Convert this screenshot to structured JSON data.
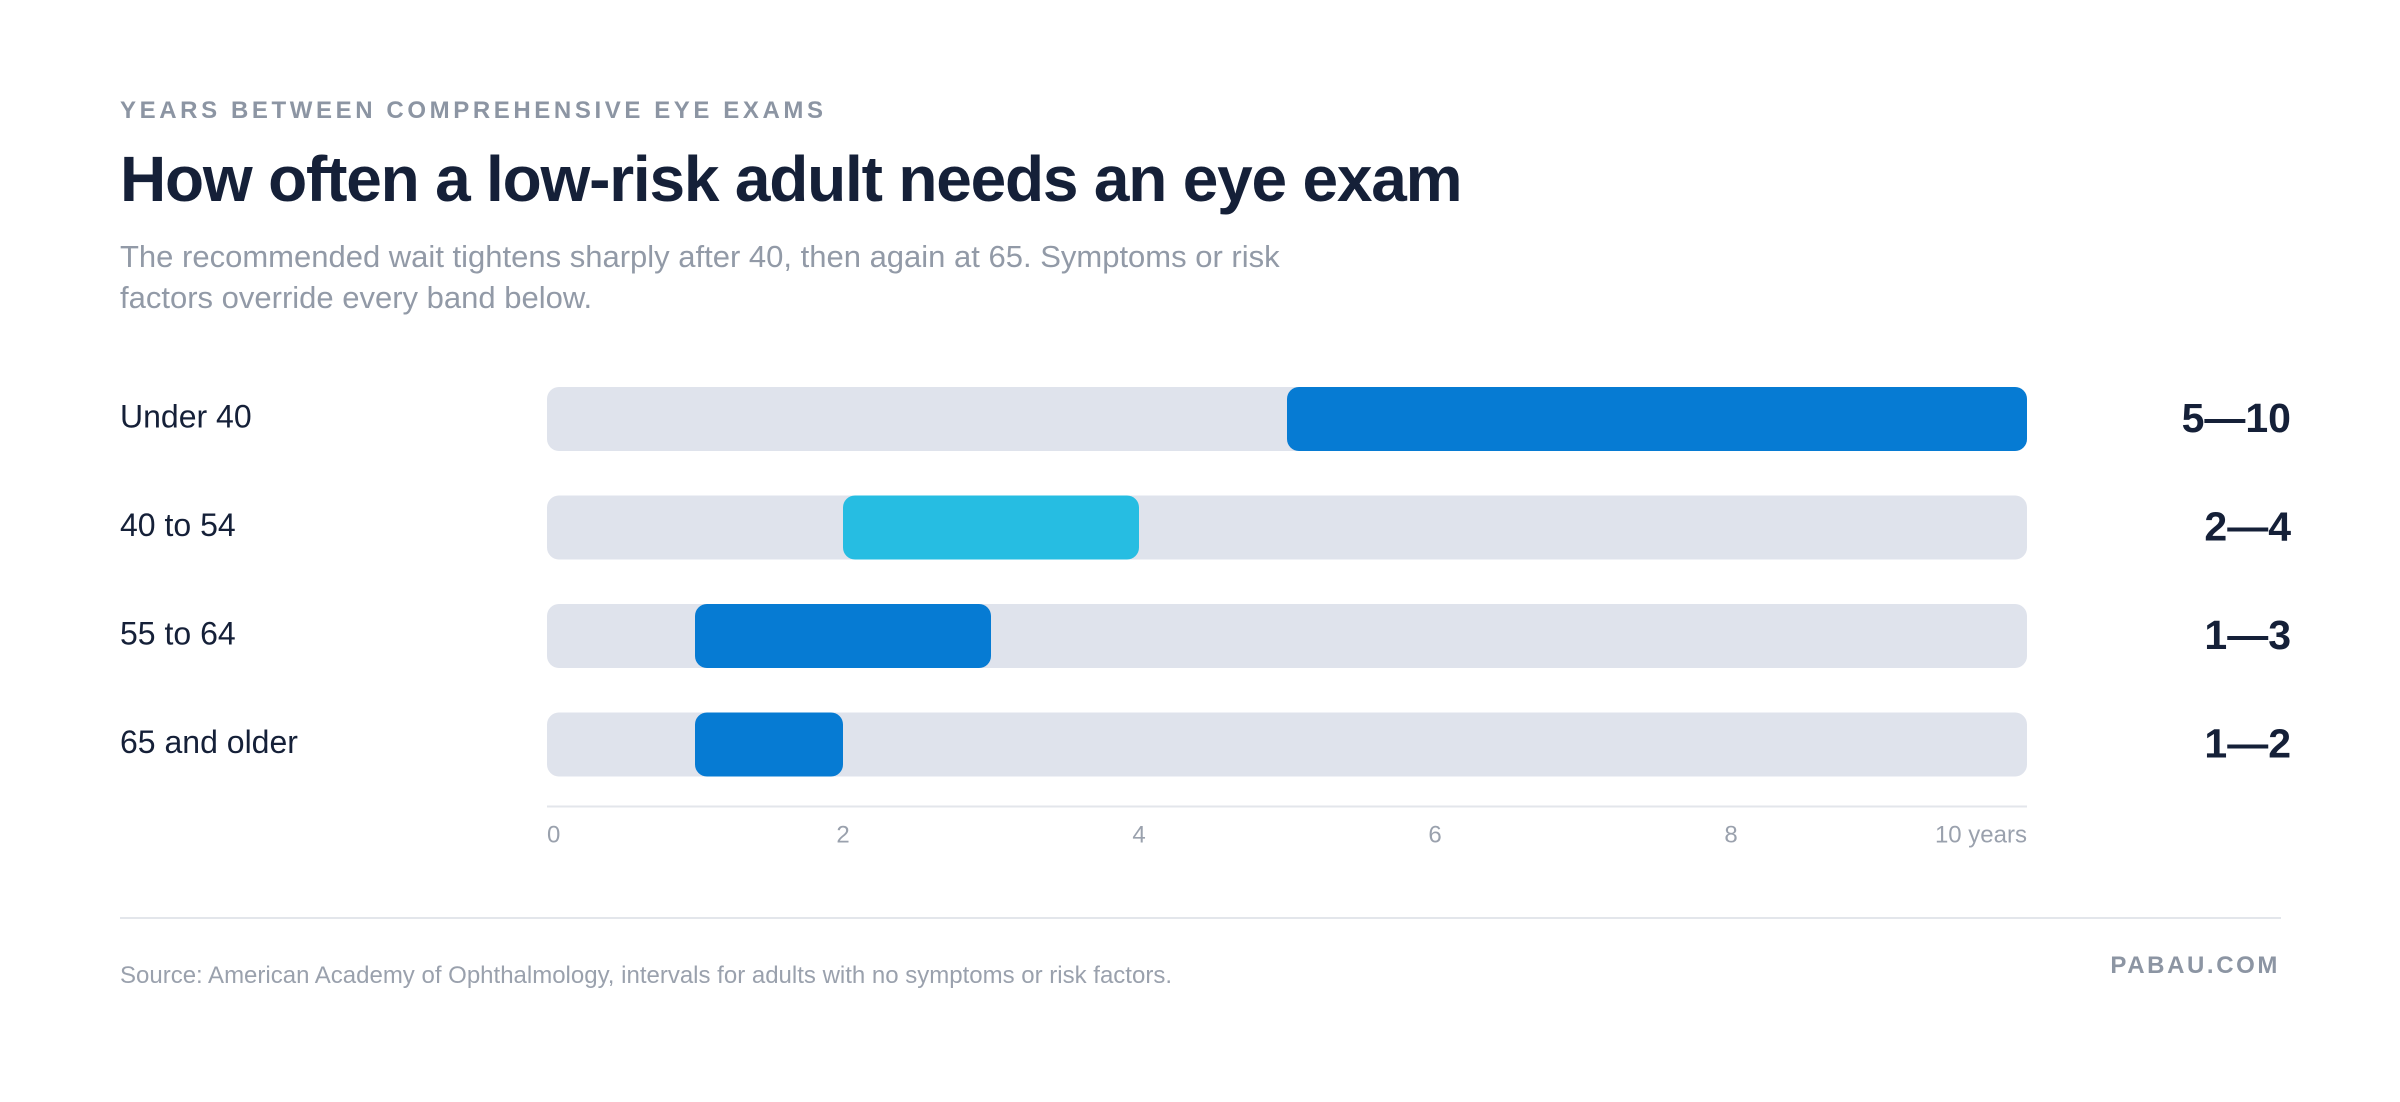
{
  "header": {
    "eyebrow": "YEARS BETWEEN COMPREHENSIVE EYE EXAMS",
    "title": "How often a low-risk adult needs an eye exam",
    "subtitle": "The recommended wait tightens sharply after 40, then again at 65. Symptoms or risk factors override every band below."
  },
  "chart_data": {
    "type": "bar",
    "subtype": "range",
    "xlim": [
      0,
      10
    ],
    "x_ticks": [
      "0",
      "2",
      "4",
      "6",
      "8",
      "10 years"
    ],
    "categories": [
      "Under 40",
      "40 to 54",
      "55 to 64",
      "65 and older"
    ],
    "ranges": [
      {
        "label": "Under 40",
        "low": 5,
        "high": 10,
        "display": "5—10",
        "color": "#067bd3"
      },
      {
        "label": "40 to 54",
        "low": 2,
        "high": 4,
        "display": "2—4",
        "color": "#26bde2"
      },
      {
        "label": "55 to 64",
        "low": 1,
        "high": 3,
        "display": "1—3",
        "color": "#067bd3"
      },
      {
        "label": "65 and older",
        "low": 1,
        "high": 2,
        "display": "1—2",
        "color": "#067bd3"
      }
    ],
    "track_color": "#dfe3ec",
    "axis_color": "#e3e6eb"
  },
  "footer": {
    "source": "Source: American Academy of Ophthalmology, intervals for adults with no symptoms or risk factors.",
    "brand": "PABAU.COM"
  }
}
